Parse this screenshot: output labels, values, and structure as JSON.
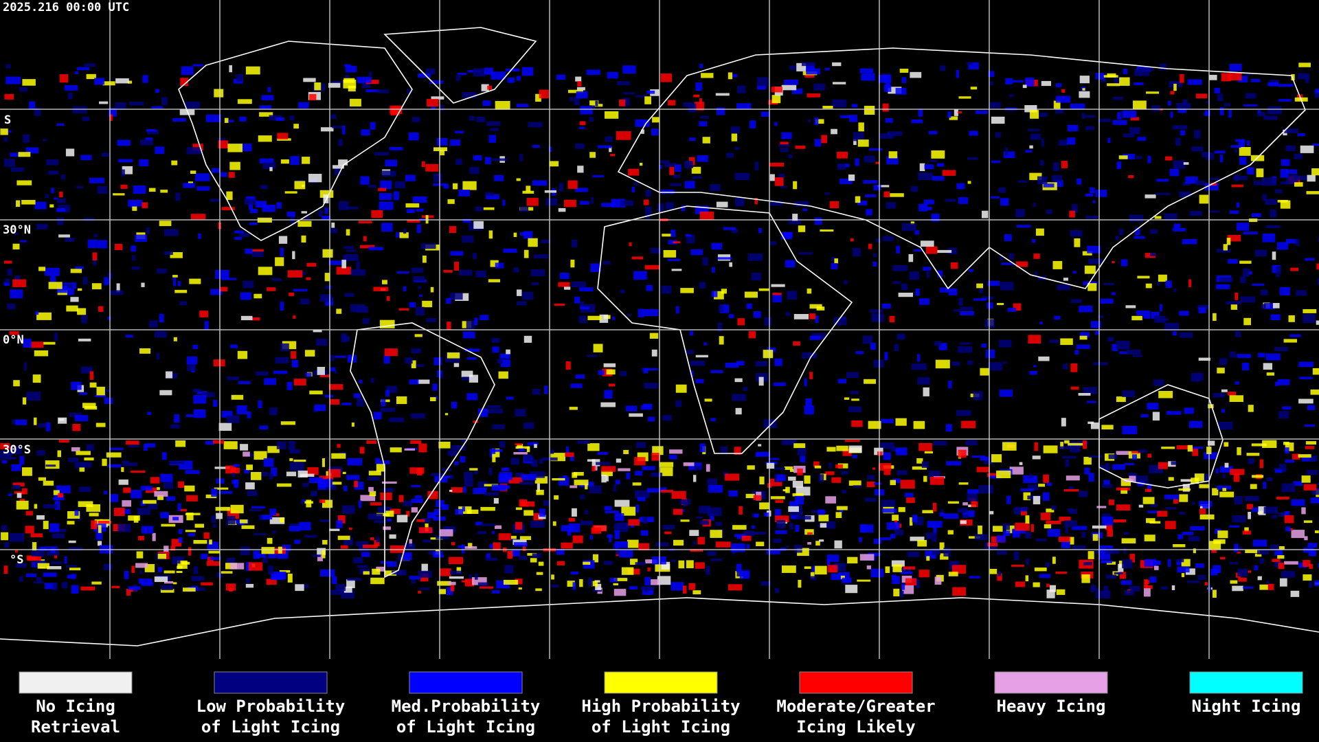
{
  "header": {
    "timestamp": "2025.216 00:00 UTC"
  },
  "map": {
    "lat_labels": [
      "S",
      "30°N",
      "0°N",
      "30°S",
      "°S"
    ]
  },
  "legend": [
    {
      "label": [
        "No Icing",
        "Retrieval"
      ],
      "color": "#f0f0f0"
    },
    {
      "label": [
        "Low Probability",
        "of Light Icing"
      ],
      "color": "#000080"
    },
    {
      "label": [
        "Med.Probability",
        "of Light Icing"
      ],
      "color": "#0000ff"
    },
    {
      "label": [
        "High Probability",
        "of Light Icing"
      ],
      "color": "#ffff00"
    },
    {
      "label": [
        "Moderate/Greater",
        "Icing Likely"
      ],
      "color": "#ff0000"
    },
    {
      "label": [
        "Heavy Icing"
      ],
      "color": "#e6a0e6"
    },
    {
      "label": [
        "Night Icing"
      ],
      "color": "#00ffff"
    }
  ]
}
